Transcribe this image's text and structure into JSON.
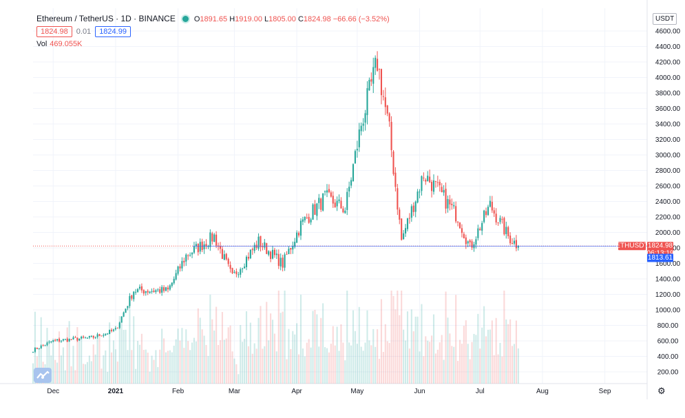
{
  "header": {
    "symbol": "Ethereum / TetherUS · 1D · BINANCE",
    "open_label": "O",
    "open": "1891.65",
    "high_label": "H",
    "high": "1919.00",
    "low_label": "L",
    "low": "1805.00",
    "close_label": "C",
    "close": "1824.98",
    "change": "−66.66 (−3.52%)",
    "bid": "1824.98",
    "spread": "0.01",
    "ask": "1824.99",
    "vol_label": "Vol",
    "vol_value": "469.055K",
    "unit": "USDT"
  },
  "badges": {
    "symbol_tag": "ETHUSDT",
    "last_price": "1824.98",
    "countdown": "06:13:19",
    "blue_price": "1813.61"
  },
  "colors": {
    "up": "#26a69a",
    "down": "#ef5350",
    "bid": "#ef5350",
    "ask": "#2962ff",
    "grid": "#f0f3fa"
  },
  "chart_data": {
    "type": "candlestick",
    "y_ticks": [
      "200.00",
      "400.00",
      "600.00",
      "800.00",
      "1000.00",
      "1200.00",
      "1400.00",
      "1600.00",
      "1800.00",
      "2000.00",
      "2200.00",
      "2400.00",
      "2600.00",
      "2800.00",
      "3000.00",
      "3200.00",
      "3400.00",
      "3600.00",
      "3800.00",
      "4000.00",
      "4200.00",
      "4400.00",
      "4600.00"
    ],
    "x_ticks": [
      "Dec",
      "2021",
      "Feb",
      "Mar",
      "Apr",
      "May",
      "Jun",
      "Jul",
      "Aug",
      "Sep"
    ],
    "ylim": [
      0,
      4700
    ],
    "grid": true,
    "key_prices": [
      {
        "date": "2020-11-21",
        "close": 480
      },
      {
        "date": "2020-12-01",
        "close": 600
      },
      {
        "date": "2020-12-20",
        "close": 640
      },
      {
        "date": "2021-01-01",
        "close": 740
      },
      {
        "date": "2021-01-10",
        "close": 1250
      },
      {
        "date": "2021-01-27",
        "close": 1250
      },
      {
        "date": "2021-02-05",
        "close": 1700
      },
      {
        "date": "2021-02-19",
        "close": 1950
      },
      {
        "date": "2021-02-28",
        "close": 1420
      },
      {
        "date": "2021-03-13",
        "close": 1880
      },
      {
        "date": "2021-03-25",
        "close": 1590
      },
      {
        "date": "2021-04-03",
        "close": 2100
      },
      {
        "date": "2021-04-15",
        "close": 2450
      },
      {
        "date": "2021-04-25",
        "close": 2300
      },
      {
        "date": "2021-05-03",
        "close": 3400
      },
      {
        "date": "2021-05-11",
        "close": 4200
      },
      {
        "date": "2021-05-17",
        "close": 3300
      },
      {
        "date": "2021-05-23",
        "close": 1900
      },
      {
        "date": "2021-06-03",
        "close": 2750
      },
      {
        "date": "2021-06-10",
        "close": 2550
      },
      {
        "date": "2021-06-20",
        "close": 2200
      },
      {
        "date": "2021-06-26",
        "close": 1800
      },
      {
        "date": "2021-07-06",
        "close": 2350
      },
      {
        "date": "2021-07-15",
        "close": 1950
      },
      {
        "date": "2021-07-20",
        "close": 1825
      }
    ],
    "last_close": 1824.98
  }
}
